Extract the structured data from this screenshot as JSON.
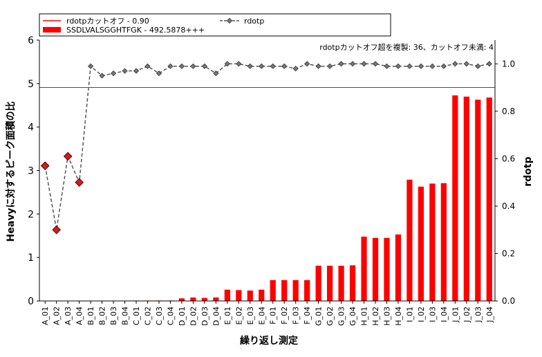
{
  "chart_data": {
    "type": "bar",
    "categories": [
      "A_01",
      "A_02",
      "A_03",
      "A_04",
      "B_01",
      "B_02",
      "B_03",
      "B_04",
      "C_01",
      "C_02",
      "C_03",
      "C_04",
      "D_01",
      "D_02",
      "D_03",
      "D_04",
      "E_01",
      "E_02",
      "E_03",
      "E_04",
      "F_01",
      "F_02",
      "F_03",
      "F_04",
      "G_01",
      "G_02",
      "G_03",
      "G_04",
      "H_01",
      "H_02",
      "H_03",
      "H_04",
      "I_01",
      "I_02",
      "I_03",
      "I_04",
      "J_01",
      "J_02",
      "J_03",
      "J_04"
    ],
    "series": [
      {
        "name": "SSDLVALSGGHTFGK - 492.5878+++",
        "type": "bar",
        "axis": "left",
        "color": "#ff0000",
        "values": [
          0,
          0,
          0,
          0,
          0,
          0,
          0,
          0,
          0.01,
          0.01,
          0.01,
          0.01,
          0.06,
          0.08,
          0.07,
          0.08,
          0.26,
          0.25,
          0.24,
          0.26,
          0.48,
          0.48,
          0.48,
          0.48,
          0.81,
          0.81,
          0.81,
          0.82,
          1.48,
          1.45,
          1.45,
          1.53,
          2.79,
          2.63,
          2.7,
          2.71,
          4.73,
          4.7,
          4.63,
          4.68
        ]
      },
      {
        "name": "rdotp",
        "type": "line",
        "axis": "right",
        "color": "#555555",
        "style": "dashed",
        "values": [
          0.57,
          0.3,
          0.61,
          0.5,
          0.99,
          0.95,
          0.96,
          0.97,
          0.97,
          0.99,
          0.96,
          0.99,
          0.99,
          0.99,
          0.99,
          0.96,
          1.0,
          1.0,
          0.99,
          0.99,
          0.99,
          0.99,
          0.98,
          1.0,
          0.99,
          0.99,
          1.0,
          1.0,
          1.0,
          1.0,
          0.99,
          0.99,
          0.99,
          0.99,
          0.99,
          0.99,
          1.0,
          1.0,
          0.99,
          1.0
        ],
        "flagged_below_cutoff": [
          0,
          1,
          2,
          3
        ]
      }
    ],
    "cutoff": {
      "name": "rdotpカットオフ - 0.90",
      "value": 0.9,
      "color": "#ff0000"
    },
    "annotation": "rdotpカットオフ超を複製: 36、カットオフ未満: 4",
    "xlabel": "繰り返し測定",
    "ylabel": "Heavyに対するピーク面積の比",
    "y2label": "rdotp",
    "ylim": [
      0,
      6
    ],
    "y2lim": [
      0,
      1.1
    ],
    "yticks": [
      "0",
      "1",
      "2",
      "3",
      "4",
      "5",
      "6"
    ],
    "y2ticks": [
      "0.0",
      "0.2",
      "0.4",
      "0.6",
      "0.8",
      "1.0"
    ],
    "legend_placement": "top-left",
    "grid": false
  }
}
